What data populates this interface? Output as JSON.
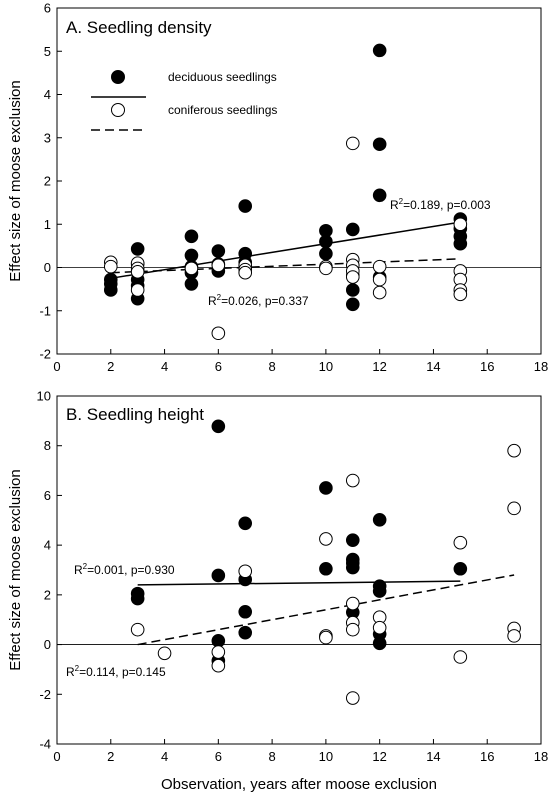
{
  "figure": {
    "x_axis_label": "Observation, years after moose exclusion"
  },
  "chart_data": [
    {
      "type": "scatter",
      "title": "A. Seedling density",
      "ylabel": "Effect size of moose exclusion",
      "xlabel": "",
      "xlim": [
        0,
        18
      ],
      "ylim": [
        -2,
        6
      ],
      "x_ticks": [
        "0",
        "2",
        "4",
        "6",
        "8",
        "10",
        "12",
        "14",
        "16",
        "18"
      ],
      "y_ticks": [
        "-2",
        "-1",
        "0",
        "1",
        "2",
        "3",
        "4",
        "5",
        "6"
      ],
      "zero_line": true,
      "grid": false,
      "legend": {
        "placement": "top-left",
        "entries": [
          {
            "label": "deciduous seedlings",
            "marker": "filled-circle",
            "line": "solid"
          },
          {
            "label": "coniferous seedlings",
            "marker": "open-circle",
            "line": "dashed"
          }
        ]
      },
      "series": [
        {
          "name": "deciduous seedlings",
          "marker": "filled",
          "points": [
            [
              2,
              -0.52
            ],
            [
              2,
              -0.38
            ],
            [
              2,
              -0.28
            ],
            [
              3,
              0.43
            ],
            [
              3,
              0.08
            ],
            [
              3,
              -0.08
            ],
            [
              3,
              -0.28
            ],
            [
              3,
              -0.42
            ],
            [
              3,
              -0.72
            ],
            [
              5,
              0.72
            ],
            [
              5,
              0.28
            ],
            [
              5,
              0.02
            ],
            [
              5,
              -0.12
            ],
            [
              5,
              -0.38
            ],
            [
              6,
              0.38
            ],
            [
              6,
              0.08
            ],
            [
              6,
              -0.08
            ],
            [
              7,
              1.42
            ],
            [
              7,
              0.32
            ],
            [
              7,
              0.12
            ],
            [
              7,
              -0.02
            ],
            [
              10,
              0.85
            ],
            [
              10,
              0.6
            ],
            [
              10,
              0.32
            ],
            [
              11,
              0.88
            ],
            [
              11,
              -0.18
            ],
            [
              11,
              -0.52
            ],
            [
              11,
              -0.85
            ],
            [
              12,
              5.02
            ],
            [
              12,
              2.85
            ],
            [
              12,
              1.67
            ],
            [
              12,
              -0.22
            ],
            [
              15,
              1.12
            ],
            [
              15,
              0.9
            ],
            [
              15,
              0.72
            ],
            [
              15,
              0.55
            ]
          ]
        },
        {
          "name": "coniferous seedlings",
          "marker": "open",
          "points": [
            [
              2,
              0.12
            ],
            [
              2,
              0.02
            ],
            [
              3,
              0.1
            ],
            [
              3,
              -0.02
            ],
            [
              3,
              -0.1
            ],
            [
              3,
              -0.52
            ],
            [
              5,
              -0.02
            ],
            [
              6,
              0.05
            ],
            [
              6,
              -1.52
            ],
            [
              7,
              0.05
            ],
            [
              7,
              -0.05
            ],
            [
              7,
              -0.12
            ],
            [
              10,
              0.02
            ],
            [
              10,
              -0.02
            ],
            [
              11,
              2.87
            ],
            [
              11,
              0.18
            ],
            [
              11,
              0.05
            ],
            [
              11,
              -0.08
            ],
            [
              11,
              -0.22
            ],
            [
              12,
              0.02
            ],
            [
              12,
              -0.28
            ],
            [
              12,
              -0.58
            ],
            [
              15,
              1.0
            ],
            [
              15,
              -0.08
            ],
            [
              15,
              -0.28
            ],
            [
              15,
              -0.52
            ],
            [
              15,
              -0.62
            ]
          ]
        }
      ],
      "trend_lines": [
        {
          "series": "deciduous seedlings",
          "style": "solid",
          "x": [
            2,
            15
          ],
          "y": [
            -0.25,
            1.05
          ],
          "label_parts": [
            "R",
            "2",
            "=0.189, p=0.003"
          ]
        },
        {
          "series": "coniferous seedlings",
          "style": "dashed",
          "x": [
            2,
            15
          ],
          "y": [
            -0.12,
            0.2
          ],
          "label_parts": [
            "R",
            "2",
            "=0.026, p=0.337"
          ]
        }
      ]
    },
    {
      "type": "scatter",
      "title": "B. Seedling height",
      "ylabel": "Effect size of moose exclusion",
      "xlabel": "Observation, years after moose exclusion",
      "xlim": [
        0,
        18
      ],
      "ylim": [
        -4,
        10
      ],
      "x_ticks": [
        "0",
        "2",
        "4",
        "6",
        "8",
        "10",
        "12",
        "14",
        "16",
        "18"
      ],
      "y_ticks": [
        "-4",
        "-2",
        "0",
        "2",
        "4",
        "6",
        "8",
        "10"
      ],
      "zero_line": true,
      "grid": false,
      "series": [
        {
          "name": "deciduous seedlings",
          "marker": "filled",
          "points": [
            [
              3,
              2.05
            ],
            [
              3,
              1.85
            ],
            [
              6,
              8.78
            ],
            [
              6,
              2.78
            ],
            [
              6,
              0.15
            ],
            [
              6,
              -0.65
            ],
            [
              7,
              4.88
            ],
            [
              7,
              2.62
            ],
            [
              7,
              1.32
            ],
            [
              7,
              0.48
            ],
            [
              10,
              6.3
            ],
            [
              10,
              3.05
            ],
            [
              11,
              4.2
            ],
            [
              11,
              3.42
            ],
            [
              11,
              3.28
            ],
            [
              11,
              3.1
            ],
            [
              11,
              1.3
            ],
            [
              12,
              5.02
            ],
            [
              12,
              2.35
            ],
            [
              12,
              2.15
            ],
            [
              12,
              0.42
            ],
            [
              12,
              0.05
            ],
            [
              15,
              3.05
            ]
          ]
        },
        {
          "name": "coniferous seedlings",
          "marker": "open",
          "points": [
            [
              3,
              0.6
            ],
            [
              4,
              -0.35
            ],
            [
              6,
              -0.3
            ],
            [
              6,
              -0.85
            ],
            [
              7,
              2.95
            ],
            [
              10,
              4.25
            ],
            [
              10,
              0.35
            ],
            [
              10,
              0.28
            ],
            [
              11,
              6.6
            ],
            [
              11,
              1.65
            ],
            [
              11,
              0.88
            ],
            [
              11,
              0.6
            ],
            [
              11,
              -2.15
            ],
            [
              12,
              1.1
            ],
            [
              12,
              0.68
            ],
            [
              15,
              4.1
            ],
            [
              15,
              -0.5
            ],
            [
              17,
              7.8
            ],
            [
              17,
              5.48
            ],
            [
              17,
              0.65
            ],
            [
              17,
              0.35
            ]
          ]
        }
      ],
      "trend_lines": [
        {
          "series": "deciduous seedlings",
          "style": "solid",
          "x": [
            3,
            15
          ],
          "y": [
            2.4,
            2.55
          ],
          "label_parts": [
            "R",
            "2",
            "=0.001, p=0.930"
          ]
        },
        {
          "series": "coniferous seedlings",
          "style": "dashed",
          "x": [
            3,
            17
          ],
          "y": [
            0.0,
            2.8
          ],
          "label_parts": [
            "R",
            "2",
            "=0.114, p=0.145"
          ]
        }
      ]
    }
  ]
}
